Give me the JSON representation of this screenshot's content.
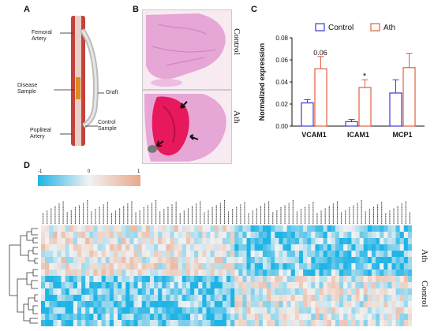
{
  "panels": {
    "a": {
      "letter": "A",
      "labels": {
        "femoral": "Femoral\nArtery",
        "disease": "Disease\nSample",
        "graft": "Graft",
        "popliteal": "Popliteal\nArtery",
        "control": "Control\nSample"
      }
    },
    "b": {
      "letter": "B",
      "top_label": "Control",
      "bottom_label": "Ath"
    },
    "c": {
      "letter": "C"
    },
    "d": {
      "letter": "D",
      "scale_min": "-1",
      "scale_mid": "0",
      "scale_max": "1",
      "group_top": "Ath",
      "group_bottom": "Control"
    }
  },
  "colors": {
    "control": "#3b3bd6",
    "ath": "#e06040",
    "heat_low": "#1fb4e6",
    "heat_mid": "#f2f2f2",
    "heat_high": "#e9a88c"
  },
  "chart_data": {
    "type": "bar",
    "categories": [
      "VCAM1",
      "ICAM1",
      "MCP1"
    ],
    "series": [
      {
        "name": "Control",
        "values": [
          0.021,
          0.004,
          0.03
        ],
        "errors": [
          0.003,
          0.002,
          0.012
        ]
      },
      {
        "name": "Ath",
        "values": [
          0.052,
          0.035,
          0.053
        ],
        "errors": [
          0.011,
          0.007,
          0.013
        ]
      }
    ],
    "ylabel": "Normalized expression",
    "ylim": [
      0,
      0.08
    ],
    "yticks": [
      "0.00",
      "0.02",
      "0.04",
      "0.06",
      "0.08"
    ],
    "annotations": [
      "0.06",
      "*"
    ],
    "legend_position": "top-right"
  }
}
